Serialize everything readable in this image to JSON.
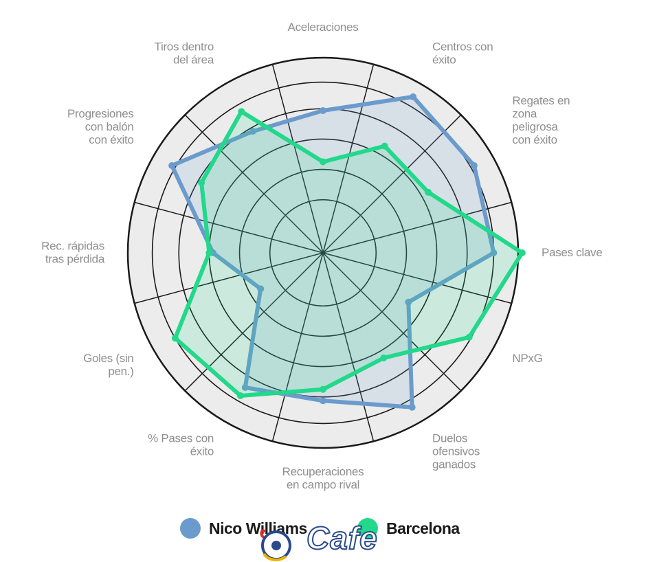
{
  "chart_data": {
    "type": "radar",
    "axes": [
      "Aceleraciones",
      "Centros con éxito",
      "Regates en zona peligrosa con éxito",
      "Pases clave",
      "NPxG",
      "Duelos ofensivos ganados",
      "Recuperaciones en campo rival",
      "% Pases con éxito",
      "Goles (sin pen.)",
      "Rec. rápidas tras pérdida",
      "Progresiones con balón con éxito",
      "Tiros dentro del área"
    ],
    "axis_label_lines": [
      [
        "Aceleraciones"
      ],
      [
        "Centros con",
        "éxito"
      ],
      [
        "Regates en",
        "zona",
        "peligrosa",
        "con éxito"
      ],
      [
        "Pases clave"
      ],
      [
        "NPxG"
      ],
      [
        "Duelos",
        "ofensivos",
        "ganados"
      ],
      [
        "Recuperaciones",
        "en campo rival"
      ],
      [
        "% Pases con",
        "éxito"
      ],
      [
        "Goles (sin",
        "pen.)"
      ],
      [
        "Rec. rápidas",
        "tras pérdida"
      ],
      [
        "Progresiones",
        "con balón",
        "con éxito"
      ],
      [
        "Tiros dentro",
        "del área"
      ]
    ],
    "range": [
      0,
      100
    ],
    "series": [
      {
        "name": "Nico Williams",
        "color": "#6b9bcc",
        "values": [
          75,
          95,
          92,
          90,
          52,
          94,
          78,
          82,
          38,
          58,
          92,
          74
        ]
      },
      {
        "name": "Barcelona",
        "color": "#22d88a",
        "values": [
          48,
          65,
          64,
          105,
          89,
          64,
          72,
          87,
          90,
          60,
          74,
          86
        ]
      }
    ],
    "grid": true
  },
  "legend": {
    "items": [
      {
        "label": "Nico Williams",
        "color": "#6b9bcc"
      },
      {
        "label": "Barcelona",
        "color": "#22d88a"
      }
    ]
  },
  "watermark": {
    "text": "Cafe"
  }
}
